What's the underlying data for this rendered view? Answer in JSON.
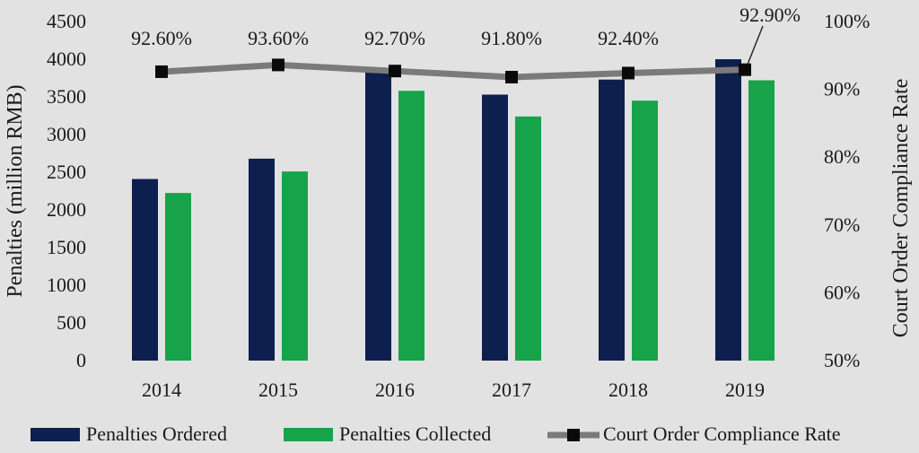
{
  "chart_data": {
    "type": "bar",
    "categories": [
      "2014",
      "2015",
      "2016",
      "2017",
      "2018",
      "2019"
    ],
    "series": [
      {
        "name": "Penalties Ordered",
        "kind": "bar",
        "axis": "left",
        "color": "#0d1f4f",
        "values": [
          2410,
          2680,
          3830,
          3530,
          3730,
          4000
        ]
      },
      {
        "name": "Penalties Collected",
        "kind": "bar",
        "axis": "left",
        "color": "#17a34a",
        "values": [
          2225,
          2510,
          3580,
          3240,
          3450,
          3720
        ]
      },
      {
        "name": "Court Order Compliance Rate",
        "kind": "line",
        "axis": "right",
        "color": "#7a7a7a",
        "marker_color": "#0a0a0a",
        "values": [
          92.6,
          93.6,
          92.7,
          91.8,
          92.4,
          92.9
        ],
        "labels": [
          "92.60%",
          "93.60%",
          "92.70%",
          "91.80%",
          "92.40%",
          "92.90%"
        ]
      }
    ],
    "y_left": {
      "label": "Penalties (million RMB)",
      "lim": [
        0,
        4500
      ],
      "ticks": [
        "0",
        "500",
        "1000",
        "1500",
        "2000",
        "2500",
        "3000",
        "3500",
        "4000",
        "4500"
      ]
    },
    "y_right": {
      "label": "Court Order Compliance Rate",
      "lim": [
        50,
        100
      ],
      "ticks": [
        "50%",
        "60%",
        "70%",
        "80%",
        "90%",
        "100%"
      ]
    },
    "legend": {
      "position": "bottom",
      "items": [
        "Penalties Ordered",
        "Penalties Collected",
        "Court Order Compliance Rate"
      ]
    },
    "grid": false
  }
}
